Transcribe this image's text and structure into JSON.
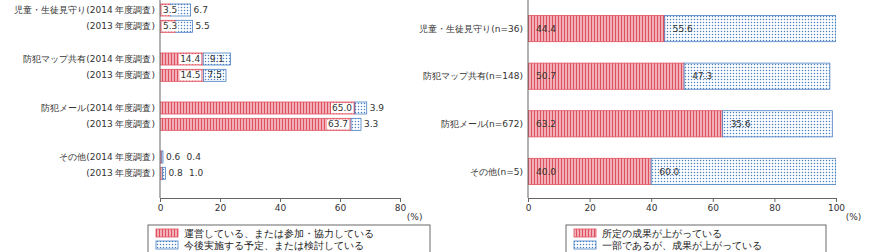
{
  "chart_data": [
    {
      "type": "bar",
      "orientation": "horizontal",
      "stacked": true,
      "data_labels": true,
      "categories": [
        "児童・生徒見守り(2014 年度調査)",
        "(2013 年度調査)",
        "防犯マップ共有(2014 年度調査)",
        "(2013 年度調査)",
        "防犯メール(2014 年度調査)",
        "(2013 年度調査)",
        "その他(2014 年度調査)",
        "(2013 年度調査)"
      ],
      "series": [
        {
          "name": "運営している、または参加・協力している",
          "color": "#e0505e",
          "values": [
            3.5,
            5.3,
            14.4,
            14.5,
            65.0,
            63.7,
            0.6,
            0.8
          ],
          "value_labels": [
            "3.5",
            "5.3",
            "14.4",
            "14.5",
            "65.0",
            "63.7",
            "0.6",
            "0.8"
          ]
        },
        {
          "name": "今後実施する予定、または検討している",
          "color": "#4a7fc4",
          "values": [
            6.7,
            5.5,
            9.1,
            7.5,
            3.9,
            3.3,
            0.4,
            1.0
          ],
          "value_labels": [
            "6.7",
            "5.5",
            "9.1",
            "7.5",
            "3.9",
            "3.3",
            "0.4",
            "1.0"
          ]
        }
      ],
      "xlim": [
        0,
        80
      ],
      "xticks": [
        0,
        20,
        40,
        60,
        80
      ],
      "xlabel": "(%)"
    },
    {
      "type": "bar",
      "orientation": "horizontal",
      "stacked": true,
      "data_labels": true,
      "categories": [
        "児童・生徒見守り(n=36)",
        "防犯マップ共有(n=148)",
        "防犯メール(n=672)",
        "その他(n=5)"
      ],
      "series": [
        {
          "name": "所定の成果が上がっている",
          "color": "#e0505e",
          "values": [
            44.4,
            50.7,
            63.2,
            40.0
          ],
          "value_labels": [
            "44.4",
            "50.7",
            "63.2",
            "40.0"
          ]
        },
        {
          "name": "一部であるが、成果が上がっている",
          "color": "#4a7fc4",
          "values": [
            55.6,
            47.3,
            35.6,
            60.0
          ],
          "value_labels": [
            "55.6",
            "47.3",
            "35.6",
            "60.0"
          ]
        }
      ],
      "xlim": [
        0,
        100
      ],
      "xticks": [
        0,
        20,
        40,
        60,
        80,
        100
      ],
      "xlabel": "(%)"
    }
  ]
}
